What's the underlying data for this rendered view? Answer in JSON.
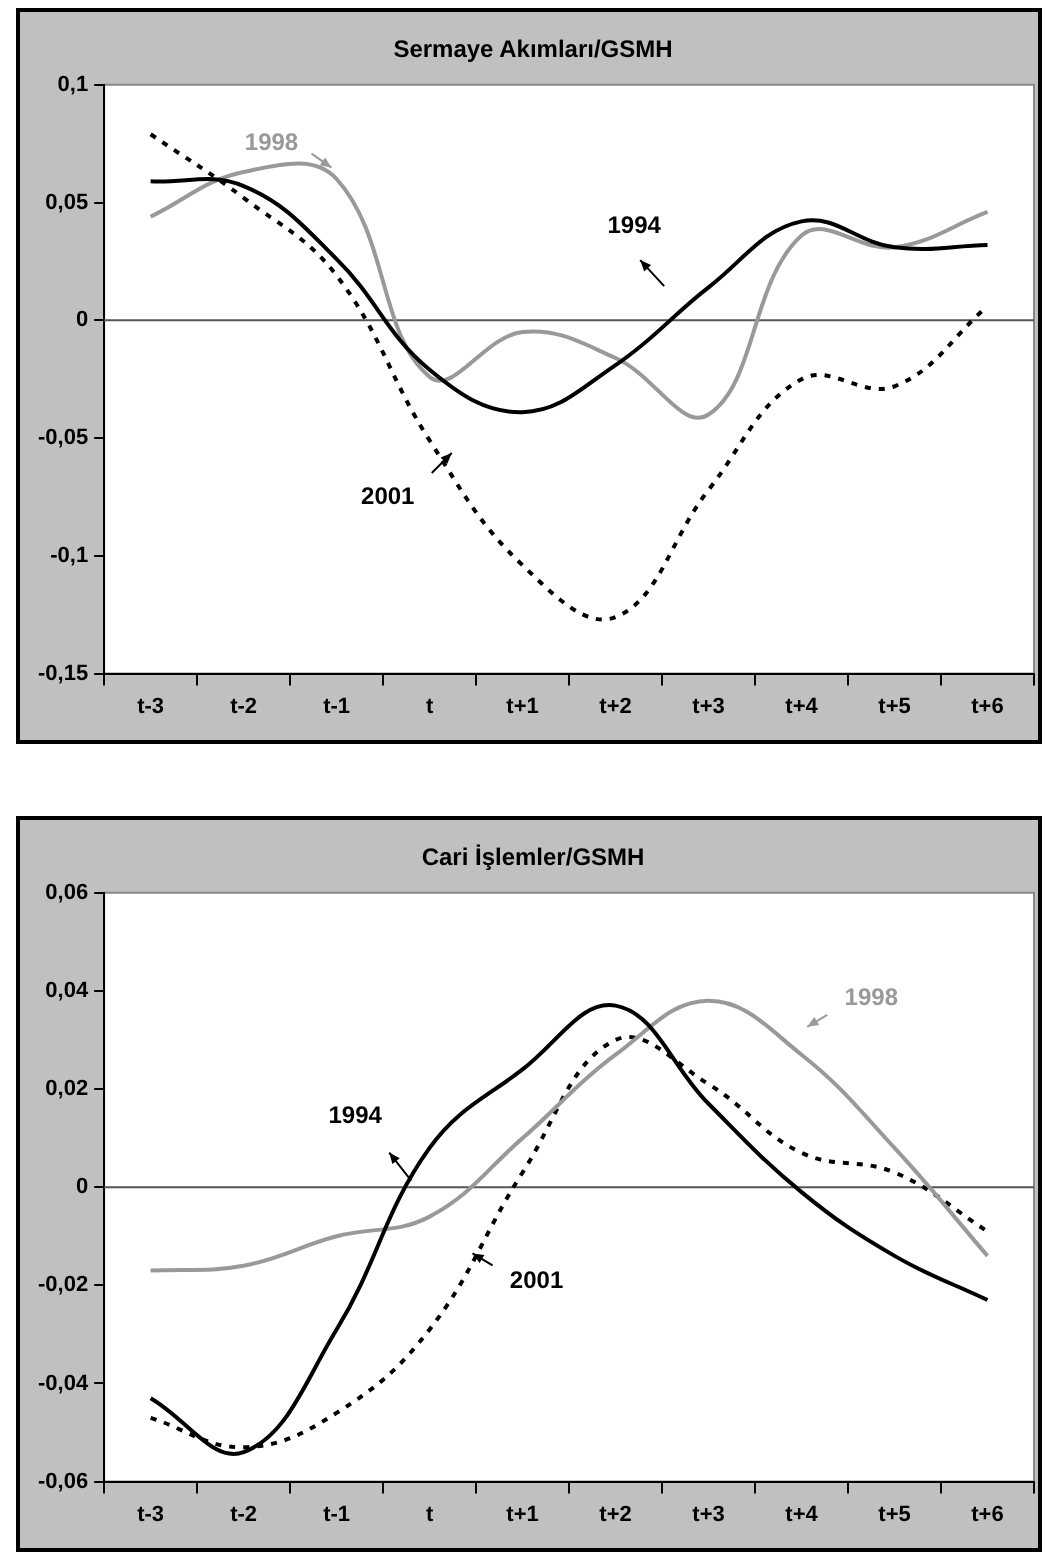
{
  "chart_data": [
    {
      "type": "line",
      "title": "Sermaye Akımları/GSMH",
      "categories": [
        "t-3",
        "t-2",
        "t-1",
        "t",
        "t+1",
        "t+2",
        "t+3",
        "t+4",
        "t+5",
        "t+6"
      ],
      "series": [
        {
          "name": "1994",
          "color": "#000000",
          "line_style": "solid",
          "values": [
            0.059,
            0.057,
            0.026,
            -0.021,
            -0.039,
            -0.019,
            0.014,
            0.042,
            0.031,
            0.032
          ]
        },
        {
          "name": "1998",
          "color": "#999999",
          "line_style": "solid",
          "values": [
            0.044,
            0.063,
            0.06,
            -0.024,
            -0.005,
            -0.016,
            -0.04,
            0.036,
            0.031,
            0.046
          ]
        },
        {
          "name": "2001",
          "color": "#000000",
          "line_style": "dotted",
          "values": [
            0.079,
            0.052,
            0.019,
            -0.051,
            -0.104,
            -0.126,
            -0.072,
            -0.025,
            -0.028,
            0.006
          ]
        }
      ],
      "ylim": [
        -0.15,
        0.1
      ],
      "yticks": [
        {
          "value": -0.15,
          "label": "-0,15"
        },
        {
          "value": -0.1,
          "label": "-0,1"
        },
        {
          "value": -0.05,
          "label": "-0,05"
        },
        {
          "value": 0,
          "label": "0"
        },
        {
          "value": 0.05,
          "label": "0,05"
        },
        {
          "value": 0.1,
          "label": "0,1"
        }
      ],
      "ref_lines": [
        {
          "axis": "y",
          "value": 0,
          "color": "#555555"
        }
      ],
      "grid": false,
      "legend": false,
      "marker": "none"
    },
    {
      "type": "line",
      "title": "Cari İşlemler/GSMH",
      "categories": [
        "t-3",
        "t-2",
        "t-1",
        "t",
        "t+1",
        "t+2",
        "t+3",
        "t+4",
        "t+5",
        "t+6"
      ],
      "series": [
        {
          "name": "1994",
          "color": "#000000",
          "line_style": "solid",
          "values": [
            -0.043,
            -0.054,
            -0.029,
            0.008,
            0.024,
            0.037,
            0.017,
            -0.001,
            -0.014,
            -0.023
          ]
        },
        {
          "name": "1998",
          "color": "#999999",
          "line_style": "solid",
          "values": [
            -0.017,
            -0.016,
            -0.01,
            -0.006,
            0.01,
            0.027,
            0.038,
            0.027,
            0.008,
            -0.014
          ]
        },
        {
          "name": "2001",
          "color": "#000000",
          "line_style": "dotted",
          "values": [
            -0.047,
            -0.053,
            -0.046,
            -0.029,
            0.003,
            0.03,
            0.021,
            0.007,
            0.003,
            -0.009
          ]
        }
      ],
      "ylim": [
        -0.06,
        0.06
      ],
      "yticks": [
        {
          "value": -0.06,
          "label": "-0,06"
        },
        {
          "value": -0.04,
          "label": "-0,04"
        },
        {
          "value": -0.02,
          "label": "-0,02"
        },
        {
          "value": 0,
          "label": "0"
        },
        {
          "value": 0.02,
          "label": "0,02"
        },
        {
          "value": 0.04,
          "label": "0,04"
        },
        {
          "value": 0.06,
          "label": "0,06"
        }
      ],
      "ref_lines": [
        {
          "axis": "y",
          "value": 0,
          "color": "#555555"
        }
      ],
      "grid": false,
      "legend": false,
      "marker": "none"
    }
  ]
}
